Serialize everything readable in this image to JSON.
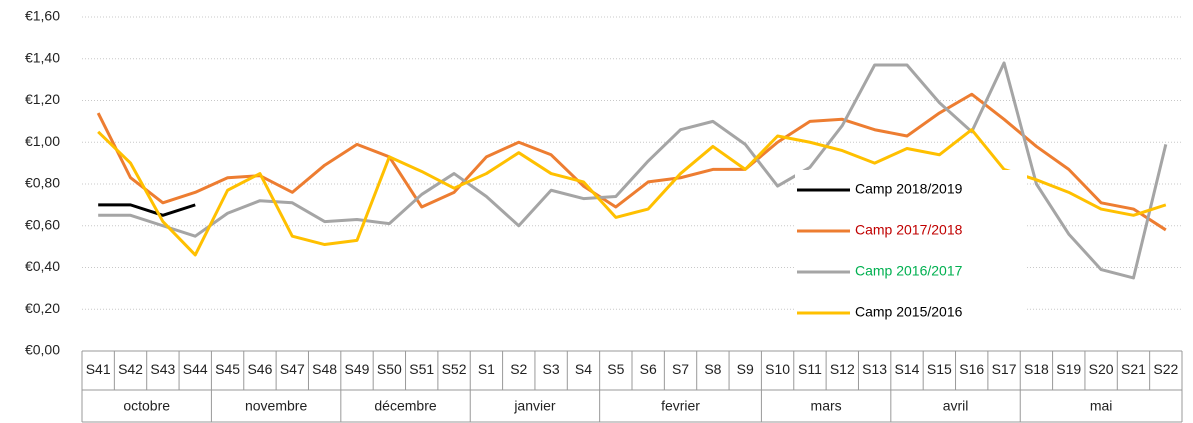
{
  "chart_data": {
    "type": "line",
    "groups": [
      {
        "label": "octobre",
        "categories": [
          "S41",
          "S42",
          "S43",
          "S44"
        ]
      },
      {
        "label": "novembre",
        "categories": [
          "S45",
          "S46",
          "S47",
          "S48"
        ]
      },
      {
        "label": "décembre",
        "categories": [
          "S49",
          "S50",
          "S51",
          "S52"
        ]
      },
      {
        "label": "janvier",
        "categories": [
          "S1",
          "S2",
          "S3",
          "S4"
        ]
      },
      {
        "label": "fevrier",
        "categories": [
          "S5",
          "S6",
          "S7",
          "S8",
          "S9"
        ]
      },
      {
        "label": "mars",
        "categories": [
          "S10",
          "S11",
          "S12",
          "S13"
        ]
      },
      {
        "label": "avril",
        "categories": [
          "S14",
          "S15",
          "S16",
          "S17"
        ]
      },
      {
        "label": "mai",
        "categories": [
          "S18",
          "S19",
          "S20",
          "S21",
          "S22"
        ]
      }
    ],
    "series": [
      {
        "name": "Camp 2018/2019",
        "color": "#000000",
        "legend_text_color": "#000000",
        "values": [
          0.7,
          0.7,
          0.65,
          0.7,
          null,
          null,
          null,
          null,
          null,
          null,
          null,
          null,
          null,
          null,
          null,
          null,
          null,
          null,
          null,
          null,
          null,
          null,
          null,
          null,
          null,
          null,
          null,
          null,
          null,
          null,
          null,
          null,
          null,
          null
        ]
      },
      {
        "name": "Camp 2017/2018",
        "color": "#ed7d31",
        "legend_text_color": "#c00000",
        "values": [
          1.14,
          0.83,
          0.71,
          0.76,
          0.83,
          0.84,
          0.76,
          0.89,
          0.99,
          0.93,
          0.69,
          0.76,
          0.93,
          1.0,
          0.94,
          0.79,
          0.69,
          0.81,
          0.83,
          0.87,
          0.87,
          1.0,
          1.1,
          1.11,
          1.06,
          1.03,
          1.14,
          1.23,
          1.11,
          0.98,
          0.87,
          0.71,
          0.68,
          0.58
        ]
      },
      {
        "name": "Camp 2016/2017",
        "color": "#a5a5a5",
        "legend_text_color": "#00b050",
        "values": [
          0.65,
          0.65,
          0.6,
          0.55,
          0.66,
          0.72,
          0.71,
          0.62,
          0.63,
          0.61,
          0.75,
          0.85,
          0.74,
          0.6,
          0.77,
          0.73,
          0.74,
          0.91,
          1.06,
          1.1,
          0.99,
          0.79,
          0.88,
          1.08,
          1.37,
          1.37,
          1.19,
          1.05,
          1.38,
          0.8,
          0.56,
          0.39,
          0.35,
          0.99
        ]
      },
      {
        "name": "Camp 2015/2016",
        "color": "#ffc000",
        "legend_text_color": "#000000",
        "values": [
          1.05,
          0.9,
          0.62,
          0.46,
          0.77,
          0.85,
          0.55,
          0.51,
          0.53,
          0.93,
          0.86,
          0.78,
          0.85,
          0.95,
          0.85,
          0.81,
          0.64,
          0.68,
          0.85,
          0.98,
          0.87,
          1.03,
          1.0,
          0.96,
          0.9,
          0.97,
          0.94,
          1.06,
          0.87,
          0.82,
          0.76,
          0.68,
          0.65,
          0.7
        ]
      }
    ],
    "ylim": [
      0,
      1.6
    ],
    "yticks": [
      {
        "value": 0,
        "label": "€0,00"
      },
      {
        "value": 0.2,
        "label": "€0,20"
      },
      {
        "value": 0.4,
        "label": "€0,40"
      },
      {
        "value": 0.6,
        "label": "€0,60"
      },
      {
        "value": 0.8,
        "label": "€0,80"
      },
      {
        "value": 1.0,
        "label": "€1,00"
      },
      {
        "value": 1.2,
        "label": "€1,20"
      },
      {
        "value": 1.4,
        "label": "€1,40"
      },
      {
        "value": 1.6,
        "label": "€1,60"
      }
    ],
    "grid": true,
    "legend": "right"
  }
}
